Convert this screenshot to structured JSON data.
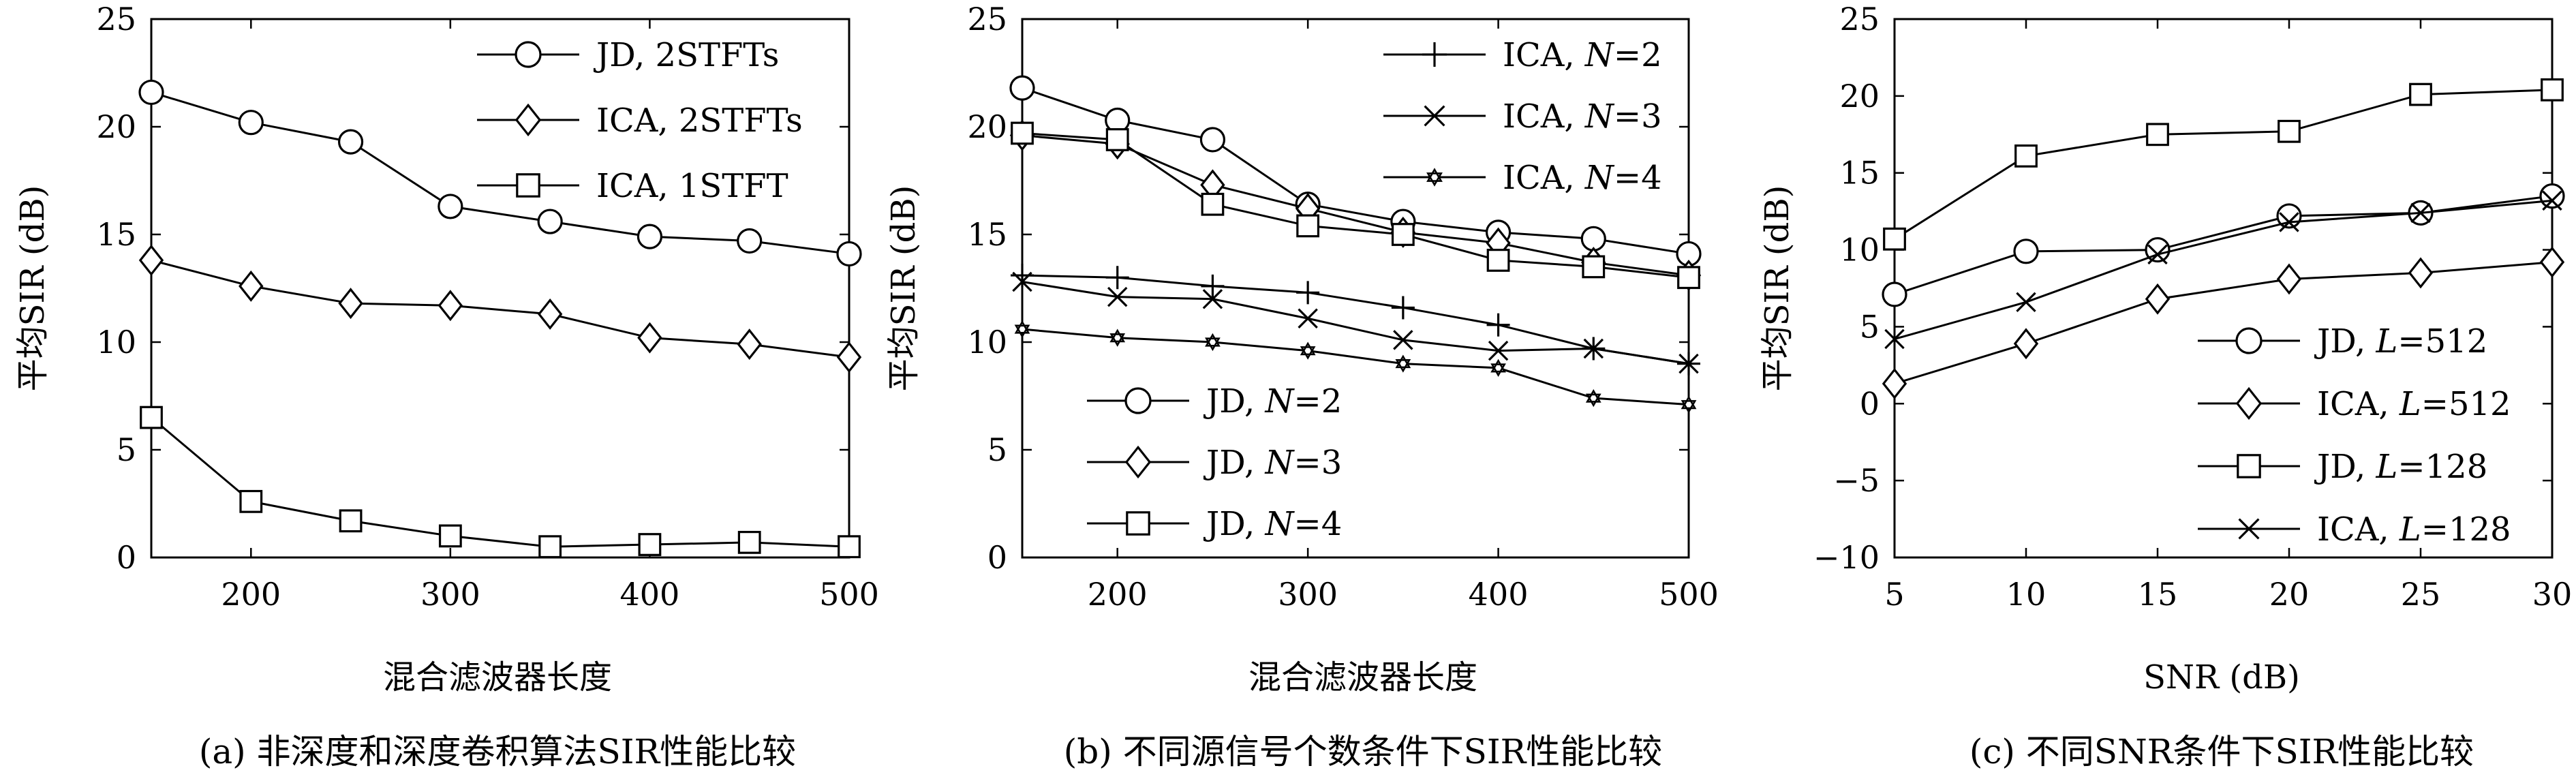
{
  "chart_data": [
    {
      "type": "line",
      "caption": "(a) 非深度和深度卷积算法SIR性能比较",
      "xlabel": "混合滤波器长度",
      "ylabel": "平均SIR (dB)",
      "xlim": [
        150,
        500
      ],
      "ylim": [
        0,
        25
      ],
      "xticks": [
        200,
        300,
        400,
        500
      ],
      "yticks": [
        0,
        5,
        10,
        15,
        20,
        25
      ],
      "grid": false,
      "legend_position": "top-right",
      "x": [
        150,
        200,
        250,
        300,
        350,
        400,
        450,
        500
      ],
      "series": [
        {
          "name": "JD, 2STFTs",
          "marker": "circle",
          "values": [
            21.6,
            20.2,
            19.3,
            16.3,
            15.6,
            14.9,
            14.7,
            14.1
          ]
        },
        {
          "name": "ICA, 2STFTs",
          "marker": "diamond",
          "values": [
            13.8,
            12.6,
            11.8,
            11.7,
            11.3,
            10.2,
            9.9,
            9.3
          ]
        },
        {
          "name": "ICA, 1STFT",
          "marker": "square",
          "values": [
            6.5,
            2.6,
            1.7,
            1.0,
            0.5,
            0.6,
            0.7,
            0.5
          ]
        }
      ]
    },
    {
      "type": "line",
      "caption": "(b) 不同源信号个数条件下SIR性能比较",
      "xlabel": "混合滤波器长度",
      "ylabel": "平均SIR (dB)",
      "xlim": [
        150,
        500
      ],
      "ylim": [
        0,
        25
      ],
      "xticks": [
        200,
        300,
        400,
        500
      ],
      "yticks": [
        0,
        5,
        10,
        15,
        20,
        25
      ],
      "grid": false,
      "legend_position": "top-right and lower-left",
      "x": [
        150,
        200,
        250,
        300,
        350,
        400,
        450,
        500
      ],
      "series": [
        {
          "name": "ICA, N=2",
          "name_prefix": "ICA, ",
          "name_var": "N",
          "name_suffix": "=2",
          "marker": "plus",
          "values": [
            13.1,
            13.0,
            12.6,
            12.3,
            11.6,
            10.8,
            9.7,
            9.0
          ]
        },
        {
          "name": "ICA, N=3",
          "name_prefix": "ICA, ",
          "name_var": "N",
          "name_suffix": "=3",
          "marker": "x",
          "values": [
            12.8,
            12.1,
            12.0,
            11.1,
            10.1,
            9.6,
            9.7,
            9.0
          ]
        },
        {
          "name": "ICA, N=4",
          "name_prefix": "ICA, ",
          "name_var": "N",
          "name_suffix": "=4",
          "marker": "star",
          "values": [
            10.6,
            10.2,
            10.0,
            9.6,
            9.0,
            8.8,
            7.4,
            7.1
          ]
        },
        {
          "name": "JD, N=2",
          "name_prefix": "JD, ",
          "name_var": "N",
          "name_suffix": "=2",
          "marker": "circle",
          "values": [
            21.8,
            20.3,
            19.4,
            16.4,
            15.6,
            15.1,
            14.8,
            14.1
          ]
        },
        {
          "name": "JD, N=3",
          "name_prefix": "JD, ",
          "name_var": "N",
          "name_suffix": "=3",
          "marker": "diamond",
          "values": [
            19.6,
            19.2,
            17.3,
            16.2,
            15.1,
            14.6,
            13.7,
            13.1
          ]
        },
        {
          "name": "JD, N=4",
          "name_prefix": "JD, ",
          "name_var": "N",
          "name_suffix": "=4",
          "marker": "square",
          "values": [
            19.7,
            19.4,
            16.4,
            15.4,
            15.0,
            13.8,
            13.5,
            13.0
          ]
        }
      ]
    },
    {
      "type": "line",
      "caption": "(c) 不同SNR条件下SIR性能比较",
      "xlabel": "SNR (dB)",
      "ylabel": "平均SIR (dB)",
      "xlim": [
        5,
        30
      ],
      "ylim": [
        -10,
        25
      ],
      "xticks": [
        5,
        10,
        15,
        20,
        25,
        30
      ],
      "yticks": [
        -10,
        -5,
        0,
        5,
        10,
        15,
        20,
        25
      ],
      "grid": false,
      "legend_position": "lower-right",
      "x": [
        5,
        10,
        15,
        20,
        25,
        30
      ],
      "series": [
        {
          "name": "JD, L=512",
          "name_prefix": "JD, ",
          "name_var": "L",
          "name_suffix": "=512",
          "marker": "circle",
          "values": [
            7.1,
            9.9,
            10.0,
            12.2,
            12.4,
            13.5
          ]
        },
        {
          "name": "ICA, L=512",
          "name_prefix": "ICA, ",
          "name_var": "L",
          "name_suffix": "=512",
          "marker": "diamond",
          "values": [
            1.3,
            3.9,
            6.8,
            8.1,
            8.5,
            9.2
          ]
        },
        {
          "name": "JD, L=128",
          "name_prefix": "JD, ",
          "name_var": "L",
          "name_suffix": "=128",
          "marker": "square",
          "values": [
            10.7,
            16.1,
            17.5,
            17.7,
            20.1,
            20.4
          ]
        },
        {
          "name": "ICA, L=128",
          "name_prefix": "ICA, ",
          "name_var": "L",
          "name_suffix": "=128",
          "marker": "x",
          "values": [
            4.2,
            6.6,
            9.7,
            11.8,
            12.4,
            13.2
          ]
        }
      ]
    }
  ]
}
